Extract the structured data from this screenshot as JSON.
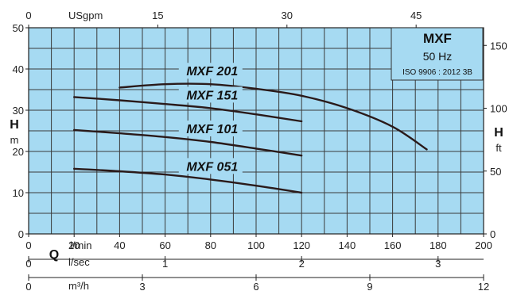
{
  "chart_data": {
    "type": "line",
    "legend": {
      "title": "MXF",
      "frequency": "50 Hz",
      "standard": "ISO 9906 : 2012 3B"
    },
    "x_axis": {
      "primary_unit": "l/min",
      "range": [
        0,
        200
      ],
      "ticks": [
        0,
        20,
        40,
        60,
        80,
        100,
        120,
        140,
        160,
        180,
        200
      ],
      "flow_letter": "Q",
      "lsec": {
        "unit": "l/sec",
        "ticks": [
          "0",
          "1",
          "2",
          "3"
        ]
      },
      "m3h": {
        "unit": "m³/h",
        "ticks": [
          "0",
          "3",
          "6",
          "9",
          "12"
        ]
      },
      "usgpm": {
        "unit": "USgpm",
        "ticks": [
          "0",
          "15",
          "30",
          "45"
        ]
      }
    },
    "y_axis": {
      "letter": "H",
      "unit": "m",
      "range": [
        0,
        50
      ],
      "ticks": [
        0,
        10,
        20,
        30,
        40,
        50
      ]
    },
    "y2_axis": {
      "letter": "H",
      "unit": "ft",
      "ticks": [
        "0",
        "50",
        "100",
        "150"
      ]
    },
    "series": [
      {
        "name": "MXF 201",
        "points": [
          [
            40,
            35.5
          ],
          [
            60,
            36.3
          ],
          [
            80,
            36.3
          ],
          [
            100,
            35.2
          ],
          [
            120,
            33.5
          ],
          [
            140,
            30.5
          ],
          [
            160,
            26.0
          ],
          [
            175,
            20.5
          ]
        ]
      },
      {
        "name": "MXF 151",
        "points": [
          [
            20,
            33.2
          ],
          [
            40,
            32.4
          ],
          [
            60,
            31.5
          ],
          [
            80,
            30.5
          ],
          [
            100,
            29.0
          ],
          [
            120,
            27.3
          ]
        ]
      },
      {
        "name": "MXF 101",
        "points": [
          [
            20,
            25.2
          ],
          [
            40,
            24.4
          ],
          [
            60,
            23.5
          ],
          [
            80,
            22.3
          ],
          [
            100,
            20.7
          ],
          [
            120,
            19.0
          ]
        ]
      },
      {
        "name": "MXF 051",
        "points": [
          [
            20,
            15.8
          ],
          [
            40,
            15.2
          ],
          [
            60,
            14.4
          ],
          [
            80,
            13.2
          ],
          [
            100,
            11.7
          ],
          [
            120,
            10.0
          ]
        ]
      }
    ]
  }
}
